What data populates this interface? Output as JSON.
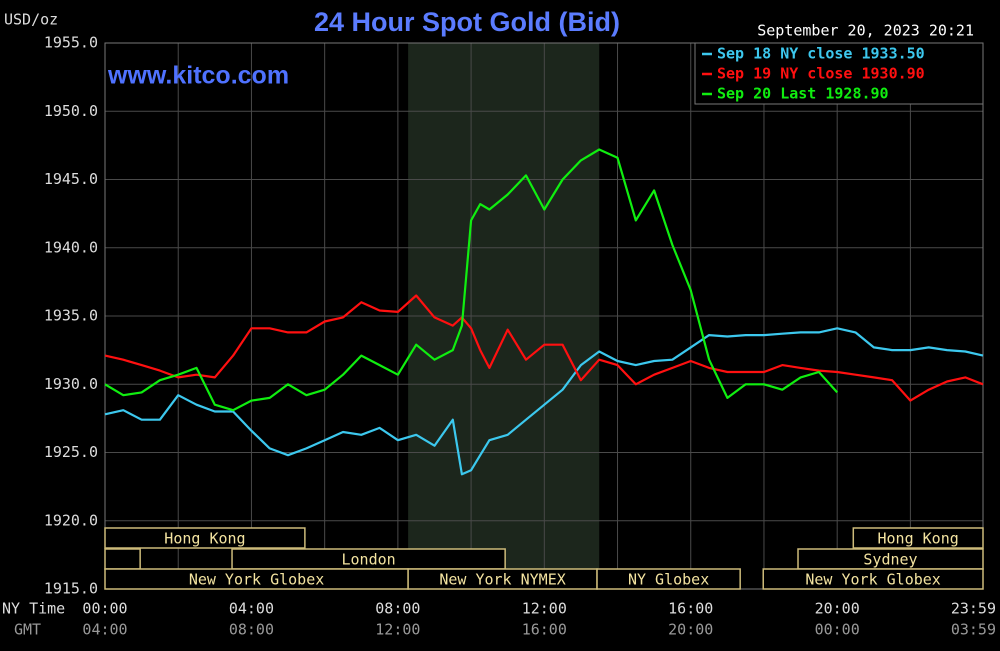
{
  "chart_data": {
    "type": "line",
    "title": "24 Hour Spot Gold (Bid)",
    "subtitle": "www.kitco.com",
    "timestamp": "September 20, 2023 20:21",
    "ylabel": "USD/oz",
    "xlabel": "NY Time",
    "x2label": "GMT",
    "xlim": [
      0,
      23.983
    ],
    "ylim": [
      1915,
      1955
    ],
    "yticks": [
      {
        "value": 1915,
        "label": "1915.0"
      },
      {
        "value": 1920,
        "label": "1920.0"
      },
      {
        "value": 1925,
        "label": "1925.0"
      },
      {
        "value": 1930,
        "label": "1930.0"
      },
      {
        "value": 1935,
        "label": "1935.0"
      },
      {
        "value": 1940,
        "label": "1940.0"
      },
      {
        "value": 1945,
        "label": "1945.0"
      },
      {
        "value": 1950,
        "label": "1950.0"
      },
      {
        "value": 1955,
        "label": "1955.0"
      }
    ],
    "xticks": [
      {
        "value": 0,
        "label": "00:00"
      },
      {
        "value": 4,
        "label": "04:00"
      },
      {
        "value": 8,
        "label": "08:00"
      },
      {
        "value": 12,
        "label": "12:00"
      },
      {
        "value": 16,
        "label": "16:00"
      },
      {
        "value": 20,
        "label": "20:00"
      },
      {
        "value": 23.983,
        "label": "23:59"
      }
    ],
    "x2ticks": [
      {
        "value": 0,
        "label": "04:00"
      },
      {
        "value": 4,
        "label": "08:00"
      },
      {
        "value": 8,
        "label": "12:00"
      },
      {
        "value": 12,
        "label": "16:00"
      },
      {
        "value": 16,
        "label": "20:00"
      },
      {
        "value": 20,
        "label": "00:00"
      },
      {
        "value": 23.983,
        "label": "03:59"
      }
    ],
    "xgrid": [
      2,
      6,
      10,
      14,
      18,
      22
    ],
    "grid": true,
    "highlight": [
      8.28,
      13.5
    ],
    "sessions": [
      [
        {
          "name": "Hong Kong",
          "start": 0,
          "end": 5.46
        },
        {
          "name": "Hong Kong",
          "start": 20.44,
          "end": 23.983
        }
      ],
      [
        {
          "name": null,
          "start": 0,
          "end": 0.96
        },
        {
          "name": "London",
          "start": 3.47,
          "end": 10.93
        },
        {
          "name": "Sydney",
          "start": 18.93,
          "end": 23.983
        }
      ],
      [
        {
          "name": "New York Globex",
          "start": 0,
          "end": 8.28
        },
        {
          "name": "New York NYMEX",
          "start": 8.28,
          "end": 13.44
        },
        {
          "name": "NY Globex",
          "start": 13.44,
          "end": 17.35
        },
        {
          "name": "New York Globex",
          "start": 17.98,
          "end": 23.983
        }
      ]
    ],
    "x": [
      0,
      0.5,
      1,
      1.5,
      2,
      2.5,
      3,
      3.5,
      4,
      4.5,
      5,
      5.5,
      6,
      6.5,
      7,
      7.5,
      8,
      8.5,
      9,
      9.5,
      9.75,
      10,
      10.25,
      10.5,
      11,
      11.5,
      12,
      12.5,
      13,
      13.5,
      14,
      14.5,
      15,
      15.5,
      16,
      16.5,
      17,
      17.5,
      18,
      18.5,
      19,
      19.5,
      20,
      20.5,
      21,
      21.5,
      22,
      22.5,
      23,
      23.5,
      23.983
    ],
    "series": [
      {
        "name": "Sep 18 NY close 1933.50",
        "color": "#3cc8ee",
        "values": [
          1927.8,
          1928.1,
          1927.4,
          1927.4,
          1929.2,
          1928.5,
          1928.0,
          1928.0,
          1926.6,
          1925.3,
          1924.8,
          1925.3,
          1925.9,
          1926.5,
          1926.3,
          1926.8,
          1925.9,
          1926.3,
          1925.5,
          1927.4,
          1923.4,
          1923.7,
          1924.8,
          1925.9,
          1926.3,
          1927.4,
          1928.5,
          1929.6,
          1931.4,
          1932.4,
          1931.7,
          1931.4,
          1931.7,
          1931.8,
          1932.7,
          1933.6,
          1933.5,
          1933.6,
          1933.6,
          1933.7,
          1933.8,
          1933.8,
          1934.1,
          1933.8,
          1932.7,
          1932.5,
          1932.5,
          1932.7,
          1932.5,
          1932.4,
          1932.1
        ]
      },
      {
        "name": "Sep 19 NY close 1930.90",
        "color": "#ff1010",
        "values": [
          1932.1,
          1931.8,
          1931.4,
          1931.0,
          1930.5,
          1930.7,
          1930.5,
          1932.1,
          1934.1,
          1934.1,
          1933.8,
          1933.8,
          1934.6,
          1934.9,
          1936.0,
          1935.4,
          1935.3,
          1936.5,
          1934.9,
          1934.3,
          1934.9,
          1934.1,
          1932.5,
          1931.2,
          1934.0,
          1931.8,
          1932.9,
          1932.9,
          1930.3,
          1931.8,
          1931.4,
          1930.0,
          1930.7,
          1931.2,
          1931.7,
          1931.2,
          1930.9,
          1930.9,
          1930.9,
          1931.4,
          1931.2,
          1931.0,
          1930.9,
          1930.7,
          1930.5,
          1930.3,
          1928.8,
          1929.6,
          1930.2,
          1930.5,
          1930.0
        ]
      },
      {
        "name": "Sep 20 Last 1928.90",
        "color": "#10ee10",
        "values": [
          1930.0,
          1929.2,
          1929.4,
          1930.3,
          1930.7,
          1931.2,
          1928.5,
          1928.1,
          1928.8,
          1929.0,
          1930.0,
          1929.2,
          1929.6,
          1930.7,
          1932.1,
          1931.4,
          1930.7,
          1932.9,
          1931.8,
          1932.5,
          1934.3,
          1942.0,
          1943.2,
          1942.8,
          1943.9,
          1945.3,
          1942.8,
          1945.0,
          1946.4,
          1947.2,
          1946.6,
          1942.0,
          1944.2,
          1940.2,
          1936.9,
          1931.8,
          1929.0,
          1930.0,
          1930.0,
          1929.6,
          1930.5,
          1930.9,
          1929.4,
          null,
          null,
          null,
          null,
          null,
          null,
          null,
          null
        ]
      }
    ]
  }
}
